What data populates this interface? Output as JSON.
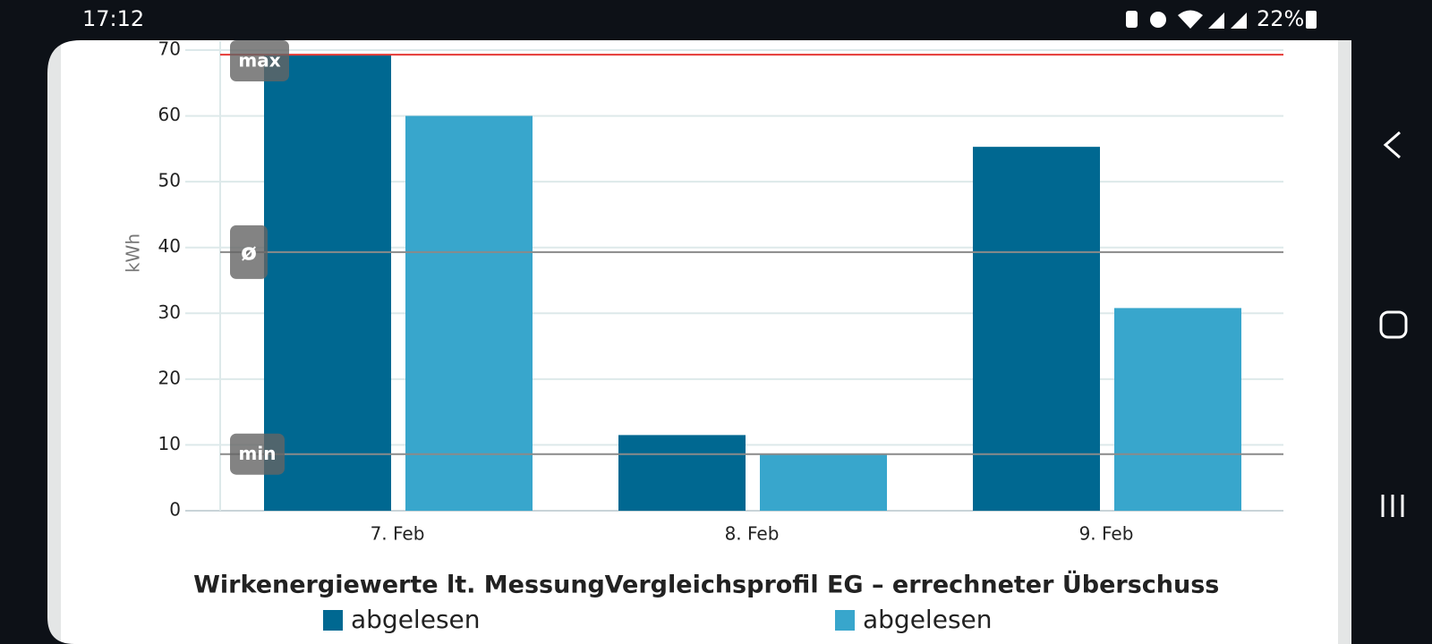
{
  "status_bar": {
    "time": "17:12",
    "battery": "22%"
  },
  "chart_data": {
    "type": "bar",
    "y_label": "kWh",
    "categories": [
      "7. Feb",
      "8. Feb",
      "9. Feb"
    ],
    "series": [
      {
        "group": "Wirkenergiewerte lt. Messung",
        "name": "abgelesen",
        "color": "#006891",
        "values": [
          69.3,
          11.5,
          55.3
        ]
      },
      {
        "group": "Vergleichsprofil EG – errechneter Überschuss",
        "name": "abgelesen",
        "color": "#38a6cc",
        "values": [
          60,
          8.6,
          30.8
        ]
      }
    ],
    "reference_lines": [
      {
        "label": "max",
        "value": 69.3,
        "color": "#e53935"
      },
      {
        "label": "ø",
        "value": 39.3,
        "color": "#8a8a8a"
      },
      {
        "label": "min",
        "value": 8.6,
        "color": "#8a8a8a"
      }
    ],
    "ylim": [
      0,
      70
    ],
    "yticks": [
      0,
      10,
      20,
      30,
      40,
      50,
      60,
      70
    ],
    "grid": true
  }
}
